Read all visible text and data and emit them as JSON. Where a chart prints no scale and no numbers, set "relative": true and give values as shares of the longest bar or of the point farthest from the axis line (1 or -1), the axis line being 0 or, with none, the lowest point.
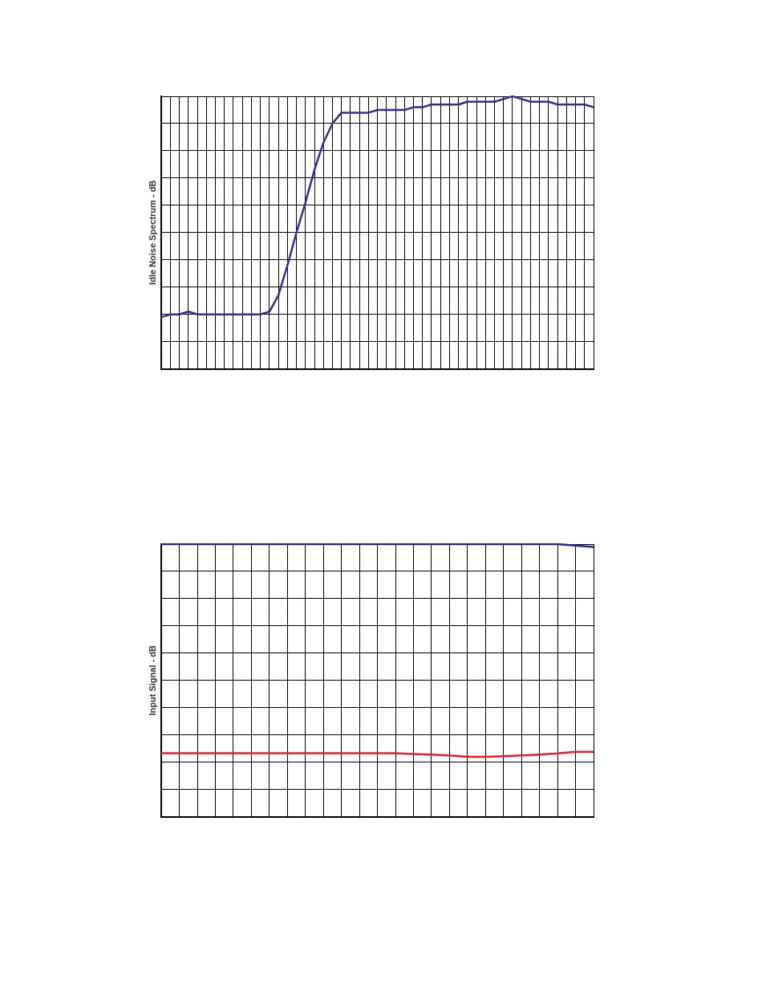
{
  "chart_data": [
    {
      "type": "line",
      "ylabel": "Idle Noise Spectrum - dB",
      "relative": true,
      "grid": true,
      "marker": "none",
      "categories": [
        null,
        null,
        null,
        null,
        null,
        null,
        null,
        null,
        null,
        null,
        null,
        null,
        null,
        null,
        null,
        null,
        null,
        null,
        null,
        null,
        null,
        null,
        null,
        null,
        null,
        null,
        null,
        null,
        null,
        null,
        null,
        null,
        null,
        null,
        null,
        null,
        null,
        null,
        null,
        null,
        null,
        null,
        null,
        null,
        null,
        null,
        null,
        null,
        null
      ],
      "series": [
        {
          "color": "#2e3192",
          "values": [
            0.19,
            0.2,
            0.2,
            0.21,
            0.2,
            0.2,
            0.2,
            0.2,
            0.2,
            0.2,
            0.2,
            0.2,
            0.21,
            0.27,
            0.38,
            0.5,
            0.61,
            0.73,
            0.83,
            0.9,
            0.94,
            0.94,
            0.94,
            0.94,
            0.95,
            0.95,
            0.95,
            0.95,
            0.96,
            0.96,
            0.97,
            0.97,
            0.97,
            0.97,
            0.98,
            0.98,
            0.98,
            0.98,
            0.99,
            1,
            0.99,
            0.98,
            0.98,
            0.98,
            0.97,
            0.97,
            0.97,
            0.97,
            0.96
          ]
        }
      ]
    },
    {
      "type": "line",
      "ylabel": "Input Signal - dB",
      "relative": true,
      "grid": true,
      "marker": "none",
      "categories": [
        null,
        null,
        null,
        null,
        null,
        null,
        null,
        null,
        null,
        null,
        null,
        null,
        null,
        null,
        null,
        null,
        null,
        null,
        null,
        null,
        null,
        null,
        null,
        null,
        null
      ],
      "series": [
        {
          "color": "#1f2a8a",
          "values": [
            1,
            1,
            1,
            1,
            1,
            1,
            1,
            1,
            1,
            1,
            1,
            1,
            1,
            1,
            1,
            1,
            1,
            1,
            1,
            1,
            1,
            1,
            1,
            0.995,
            0.99
          ]
        },
        {
          "color": "#ee1c25",
          "values": [
            0.233,
            0.233,
            0.233,
            0.233,
            0.233,
            0.233,
            0.233,
            0.233,
            0.233,
            0.233,
            0.233,
            0.233,
            0.233,
            0.233,
            0.23,
            0.228,
            0.225,
            0.22,
            0.22,
            0.222,
            0.225,
            0.228,
            0.232,
            0.238,
            0.238
          ]
        }
      ]
    }
  ]
}
